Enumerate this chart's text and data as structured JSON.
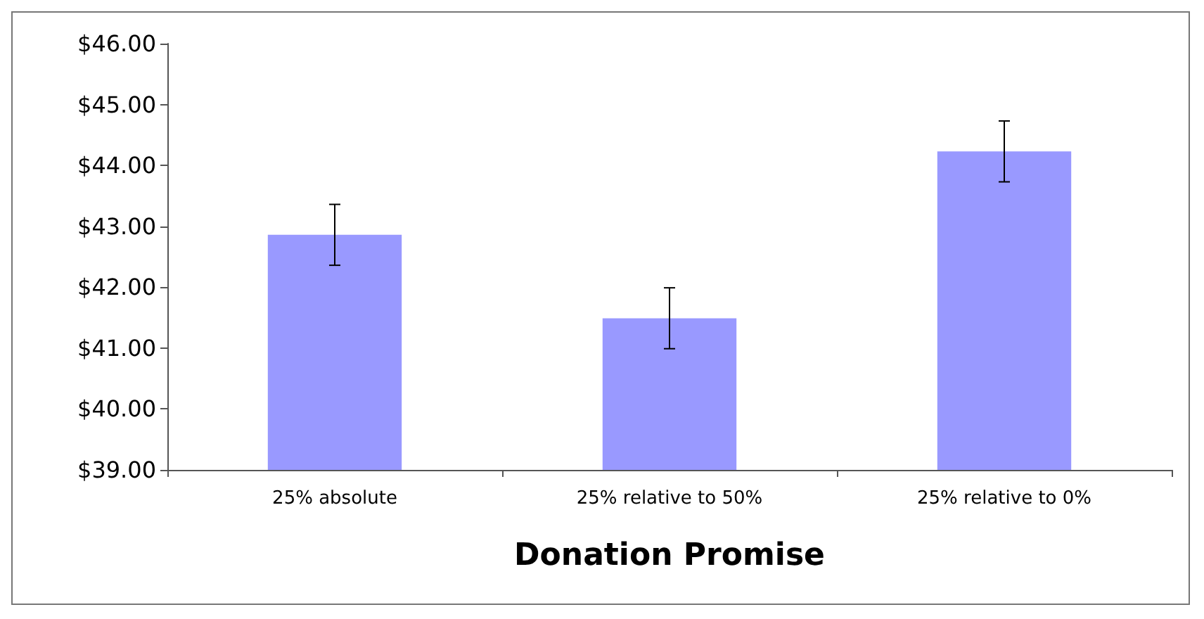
{
  "chart_data": {
    "type": "bar",
    "xlabel": "Donation Promise",
    "categories": [
      "25% absolute",
      "25% relative to 50%",
      "25% relative to 0%"
    ],
    "values": [
      42.86,
      41.49,
      44.23
    ],
    "errors": [
      0.5,
      0.5,
      0.5
    ],
    "color": "#9999ff",
    "ylim": [
      39,
      46
    ],
    "yticks": [
      {
        "value": 39,
        "label": "$39.00"
      },
      {
        "value": 40,
        "label": "$40.00"
      },
      {
        "value": 41,
        "label": "$41.00"
      },
      {
        "value": 42,
        "label": "$42.00"
      },
      {
        "value": 43,
        "label": "$43.00"
      },
      {
        "value": 44,
        "label": "$44.00"
      },
      {
        "value": 45,
        "label": "$45.00"
      },
      {
        "value": 46,
        "label": "$46.00"
      }
    ],
    "grid": false
  }
}
